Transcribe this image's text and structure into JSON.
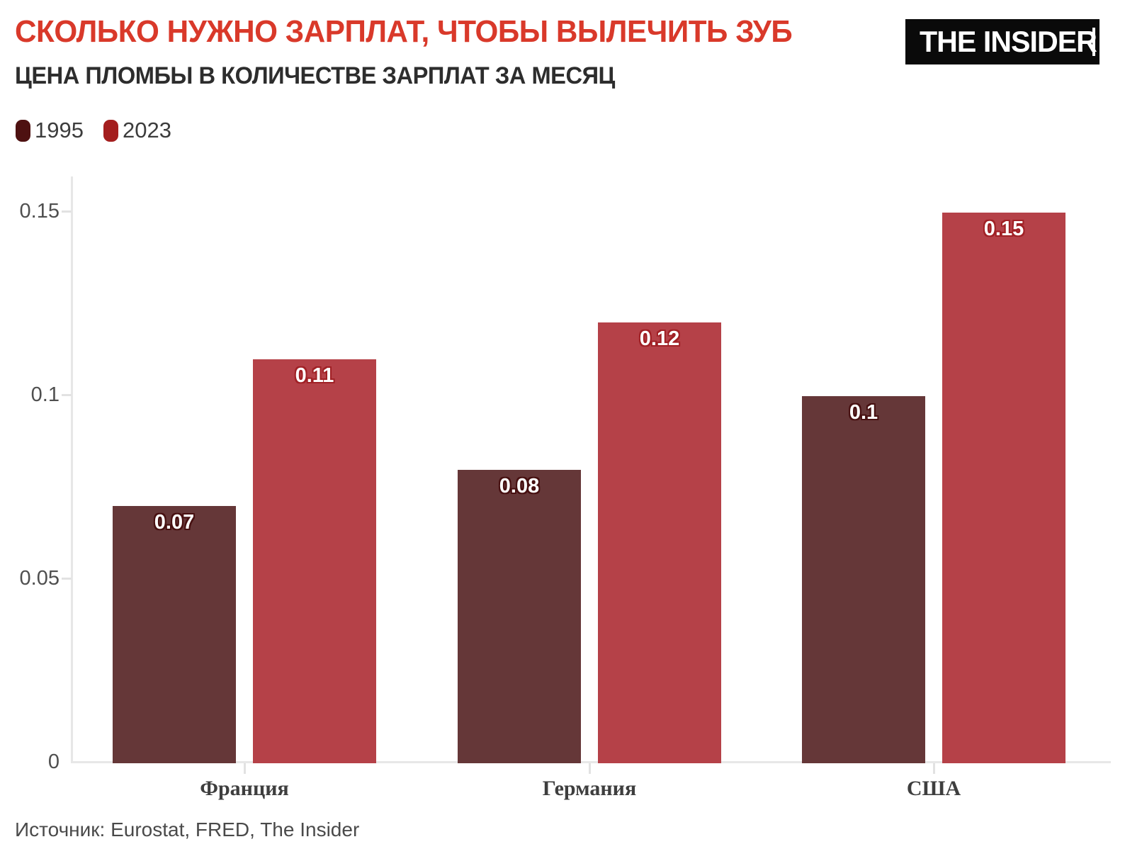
{
  "header": {
    "title": "СКОЛЬКО НУЖНО ЗАРПЛАТ, ЧТОБЫ ВЫЛЕЧИТЬ ЗУБ",
    "subtitle": "ЦЕНА ПЛОМБЫ В КОЛИЧЕСТВЕ ЗАРПЛАТ ЗА МЕСЯЦ",
    "title_color": "#d9392a",
    "subtitle_color": "#2d2d2d"
  },
  "logo": {
    "text": "THE INSIDER",
    "bg_color": "#0a0a0a",
    "text_color": "#ffffff"
  },
  "legend": {
    "items": [
      {
        "label": "1995",
        "swatch_color": "#4e1111"
      },
      {
        "label": "2023",
        "swatch_color": "#a41e1e"
      }
    ]
  },
  "source": {
    "text": "Источник: Eurostat, FRED, The Insider"
  },
  "chart_data": {
    "type": "bar",
    "title": "СКОЛЬКО НУЖНО ЗАРПЛАТ, ЧТОБЫ ВЫЛЕЧИТЬ ЗУБ",
    "subtitle": "ЦЕНА ПЛОМБЫ В КОЛИЧЕСТВЕ ЗАРПЛАТ ЗА МЕСЯЦ",
    "categories": [
      "Франция",
      "Германия",
      "США"
    ],
    "series": [
      {
        "name": "1995",
        "color": "#653738",
        "label_outline_color": "#471011",
        "legend_color": "#4e1111",
        "values": [
          0.07,
          0.08,
          0.1
        ],
        "labels": [
          "0.07",
          "0.08",
          "0.1"
        ]
      },
      {
        "name": "2023",
        "color": "#b54148",
        "label_outline_color": "#a02025",
        "legend_color": "#a41e1e",
        "values": [
          0.11,
          0.12,
          0.15
        ],
        "labels": [
          "0.11",
          "0.12",
          "0.15"
        ]
      }
    ],
    "y_axis": {
      "ticks": [
        0,
        0.05,
        0.1,
        0.15
      ],
      "tick_labels": [
        "0",
        "0.05",
        "0.1",
        "0.15"
      ],
      "min": 0,
      "max": 0.15
    },
    "xlabel": "",
    "ylabel": "",
    "grid": "none",
    "legend_position": "top-left",
    "source": "Источник: Eurostat, FRED, The Insider"
  }
}
